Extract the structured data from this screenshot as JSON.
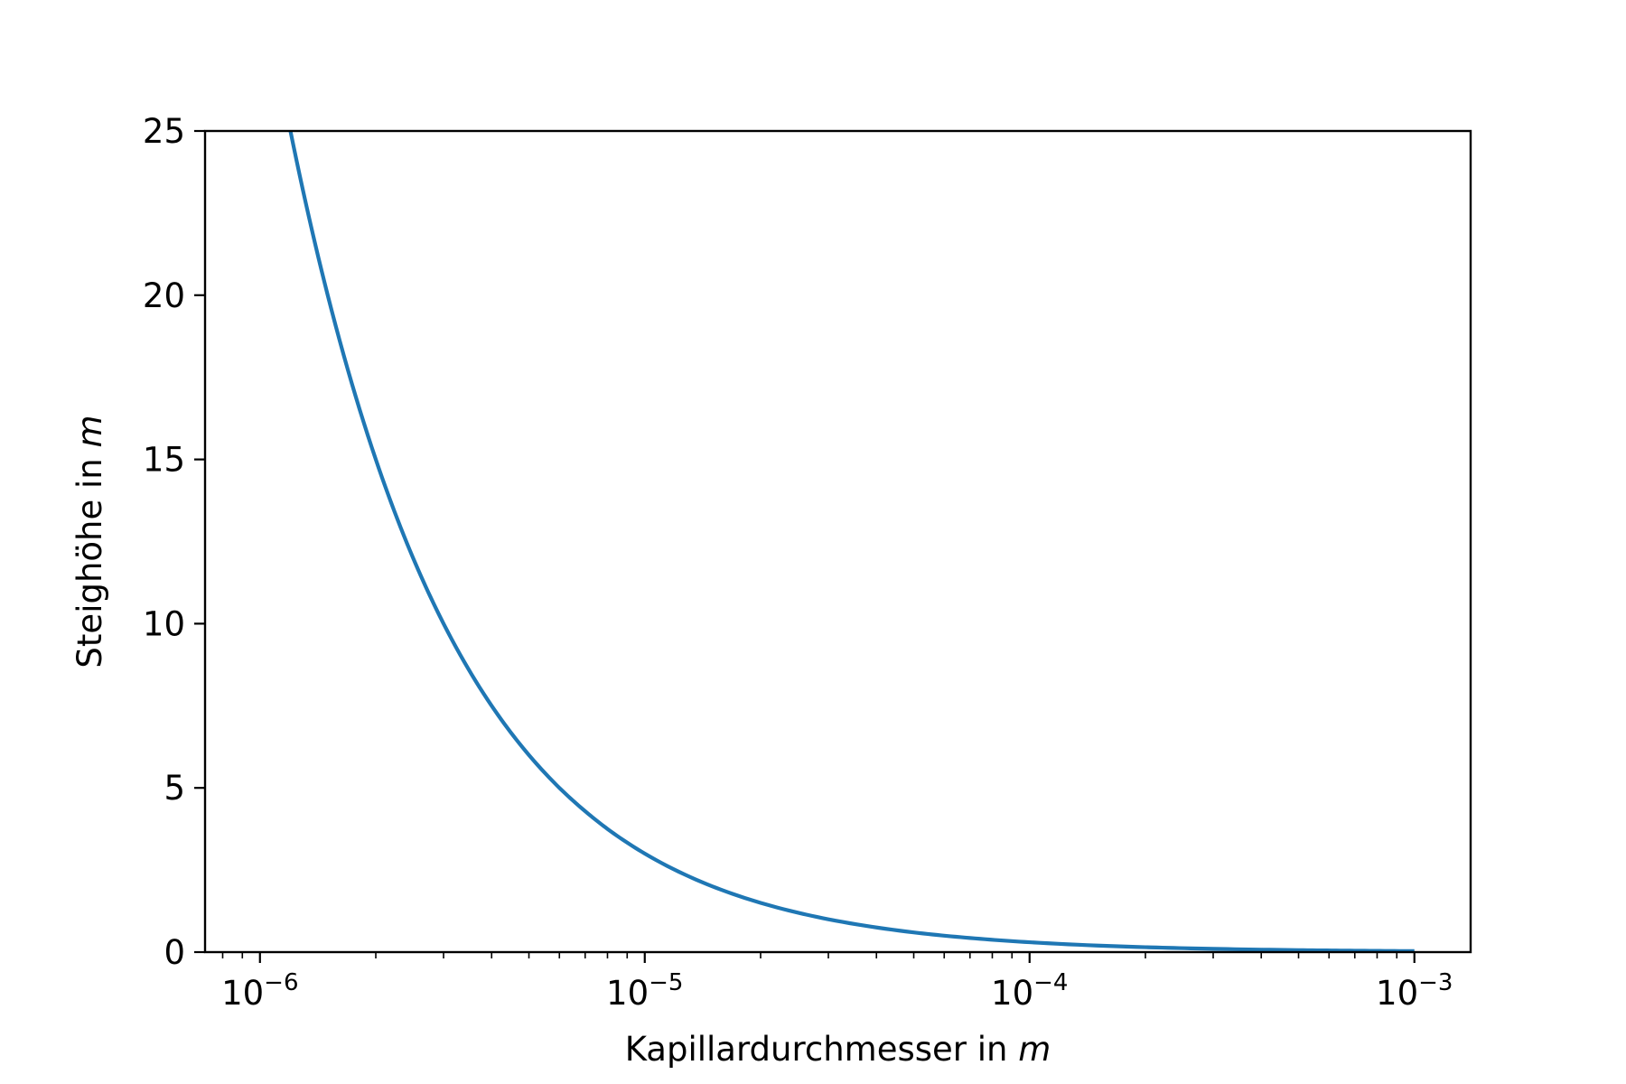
{
  "chart_data": {
    "type": "line",
    "title": "",
    "xlabel": "Kapillardurchmesser in",
    "xlabel_unit": "m",
    "ylabel": "Steighöhe in",
    "ylabel_unit": "m",
    "x_scale": "log",
    "xlim": [
      7.2e-07,
      0.0014
    ],
    "ylim": [
      0,
      25
    ],
    "grid": false,
    "legend": "none",
    "x_major_ticks": [
      {
        "value": 1e-06,
        "base": "10",
        "exp": "−6"
      },
      {
        "value": 1e-05,
        "base": "10",
        "exp": "−5"
      },
      {
        "value": 0.0001,
        "base": "10",
        "exp": "−4"
      },
      {
        "value": 0.001,
        "base": "10",
        "exp": "−3"
      }
    ],
    "y_ticks": [
      0,
      5,
      10,
      15,
      20,
      25
    ],
    "series": [
      {
        "color": "#1f77b4",
        "x": [
          1.2e-06,
          1.5e-06,
          2e-06,
          2.5e-06,
          3e-06,
          4e-06,
          5e-06,
          6e-06,
          7e-06,
          8e-06,
          1e-05,
          1.5e-05,
          2e-05,
          3e-05,
          5e-05,
          7e-05,
          0.0001,
          0.0002,
          0.0003,
          0.0005,
          0.0007,
          0.001
        ],
        "y": [
          25.0,
          20.0,
          15.0,
          12.0,
          10.0,
          7.5,
          6.0,
          5.0,
          4.29,
          3.75,
          3.0,
          2.0,
          1.5,
          1.0,
          0.6,
          0.43,
          0.3,
          0.15,
          0.1,
          0.06,
          0.043,
          0.03
        ]
      }
    ]
  }
}
